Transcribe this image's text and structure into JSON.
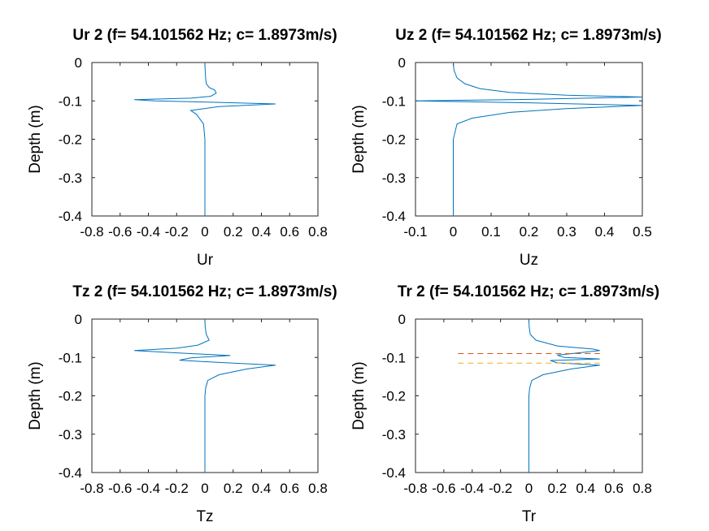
{
  "chart_data": [
    {
      "type": "line",
      "title": "Ur 2 (f= 54.101562 Hz; c= 1.8973m/s)",
      "xlabel": "Ur",
      "ylabel": "Depth (m)",
      "xlim": [
        -0.8,
        0.8
      ],
      "ylim": [
        -0.4,
        0
      ],
      "xticks": [
        "-0.8",
        "-0.6",
        "-0.4",
        "-0.2",
        "0",
        "0.2",
        "0.4",
        "0.6",
        "0.8"
      ],
      "yticks": [
        "0",
        "-0.1",
        "-0.2",
        "-0.3",
        "-0.4"
      ],
      "grid": false,
      "series": [
        {
          "color": "#0072bd",
          "x": [
            0,
            0.002,
            0.005,
            0.01,
            0.03,
            0.07,
            0.08,
            0.04,
            -0.1,
            -0.5,
            -0.35,
            0.1,
            0.5,
            0.1,
            -0.1,
            -0.06,
            -0.01,
            0,
            0
          ],
          "y": [
            0,
            -0.02,
            -0.04,
            -0.055,
            -0.065,
            -0.072,
            -0.08,
            -0.088,
            -0.093,
            -0.097,
            -0.1,
            -0.104,
            -0.108,
            -0.115,
            -0.125,
            -0.135,
            -0.16,
            -0.2,
            -0.4
          ]
        }
      ]
    },
    {
      "type": "line",
      "title": "Uz 2 (f= 54.101562 Hz; c= 1.8973m/s)",
      "xlabel": "Uz",
      "ylabel": "Depth (m)",
      "xlim": [
        -0.1,
        0.5
      ],
      "ylim": [
        -0.4,
        0
      ],
      "xticks": [
        "-0.1",
        "0",
        "0.1",
        "0.2",
        "0.3",
        "0.4",
        "0.5"
      ],
      "yticks": [
        "0",
        "-0.1",
        "-0.2",
        "-0.3",
        "-0.4"
      ],
      "grid": false,
      "series": [
        {
          "color": "#0072bd",
          "x": [
            0,
            0.002,
            0.01,
            0.03,
            0.07,
            0.15,
            0.3,
            0.5,
            0.2,
            -0.1,
            0.2,
            0.5,
            0.3,
            0.15,
            0.05,
            0.01,
            0,
            0
          ],
          "y": [
            0,
            -0.02,
            -0.04,
            -0.055,
            -0.068,
            -0.078,
            -0.085,
            -0.09,
            -0.096,
            -0.1,
            -0.105,
            -0.112,
            -0.12,
            -0.13,
            -0.145,
            -0.16,
            -0.2,
            -0.4
          ]
        }
      ]
    },
    {
      "type": "line",
      "title": "Tz 2 (f= 54.101562 Hz; c= 1.8973m/s)",
      "xlabel": "Tz",
      "ylabel": "Depth (m)",
      "xlim": [
        -0.8,
        0.8
      ],
      "ylim": [
        -0.4,
        0
      ],
      "xticks": [
        "-0.8",
        "-0.6",
        "-0.4",
        "-0.2",
        "0",
        "0.2",
        "0.4",
        "0.6",
        "0.8"
      ],
      "yticks": [
        "0",
        "-0.1",
        "-0.2",
        "-0.3",
        "-0.4"
      ],
      "grid": false,
      "series": [
        {
          "color": "#0072bd",
          "x": [
            0,
            0.002,
            0.01,
            0.03,
            -0.05,
            -0.2,
            -0.5,
            -0.2,
            0.18,
            -0.1,
            -0.18,
            0.1,
            0.5,
            0.3,
            0.1,
            0.02,
            0.005,
            0,
            0
          ],
          "y": [
            0,
            -0.02,
            -0.04,
            -0.055,
            -0.068,
            -0.076,
            -0.082,
            -0.088,
            -0.095,
            -0.101,
            -0.107,
            -0.113,
            -0.12,
            -0.13,
            -0.145,
            -0.16,
            -0.18,
            -0.2,
            -0.4
          ]
        }
      ]
    },
    {
      "type": "line",
      "title": "Tr 2 (f= 54.101562 Hz; c= 1.8973m/s)",
      "xlabel": "Tr",
      "ylabel": "Depth (m)",
      "xlim": [
        -0.8,
        0.8
      ],
      "ylim": [
        -0.4,
        0
      ],
      "xticks": [
        "-0.8",
        "-0.6",
        "-0.4",
        "-0.2",
        "0",
        "0.2",
        "0.4",
        "0.6",
        "0.8"
      ],
      "yticks": [
        "0",
        "-0.1",
        "-0.2",
        "-0.3",
        "-0.4"
      ],
      "grid": false,
      "series": [
        {
          "color": "#0072bd",
          "x": [
            0,
            0.002,
            0.01,
            0.05,
            0.2,
            0.45,
            0.5,
            0.35,
            0.2,
            0.25,
            0.5,
            0.15,
            0.2,
            0.5,
            0.3,
            0.1,
            0.02,
            0.005,
            0,
            0
          ],
          "y": [
            0,
            -0.02,
            -0.04,
            -0.055,
            -0.07,
            -0.078,
            -0.082,
            -0.088,
            -0.094,
            -0.1,
            -0.104,
            -0.108,
            -0.114,
            -0.12,
            -0.13,
            -0.145,
            -0.16,
            -0.18,
            -0.2,
            -0.4
          ]
        },
        {
          "color": "#d95319",
          "dash": true,
          "x": [
            -0.5,
            0.5
          ],
          "y": [
            -0.09,
            -0.09
          ]
        },
        {
          "color": "#edb120",
          "dash": true,
          "x": [
            -0.5,
            0.5
          ],
          "y": [
            -0.115,
            -0.115
          ]
        }
      ]
    }
  ]
}
